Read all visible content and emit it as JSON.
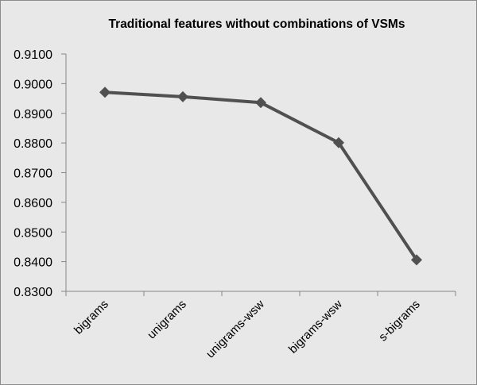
{
  "chart_data": {
    "type": "line",
    "title": "Traditional features without combinations of VSMs",
    "xlabel": "",
    "ylabel": "",
    "categories": [
      "bigrams",
      "unigrams",
      "unigrams-wsw",
      "bigrams-wsw",
      "s-bigrams"
    ],
    "series": [
      {
        "values": [
          0.8971,
          0.8956,
          0.8936,
          0.8801,
          0.8406
        ]
      }
    ],
    "ylim": [
      0.83,
      0.91
    ],
    "yticks": [
      "0.8300",
      "0.8400",
      "0.8500",
      "0.8600",
      "0.8700",
      "0.8800",
      "0.8900",
      "0.9000",
      "0.9100"
    ],
    "grid": false,
    "legend": "none",
    "colors": {
      "line": "#505050",
      "marker": "#505050",
      "axis": "#868686",
      "background": "#e8e8e8"
    }
  }
}
